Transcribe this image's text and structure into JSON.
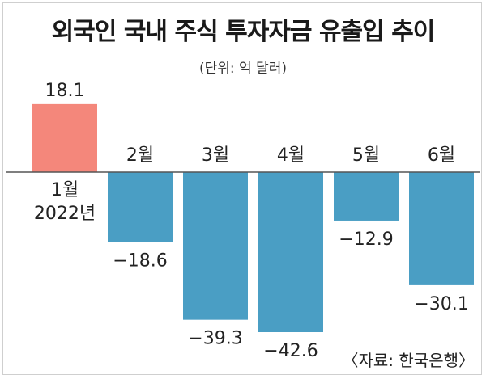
{
  "title": "외국인 국내 주식 투자자금 유출입 추이",
  "unit": "(단위: 억 달러)",
  "source": "〈자료: 한국은행〉",
  "colors": {
    "positive": "#f4877b",
    "negative": "#4a9ec4"
  },
  "chart_data": {
    "type": "bar",
    "title": "외국인 국내 주식 투자자금 유출입 추이",
    "ylabel": "(단위: 억 달러)",
    "categories": [
      "1월",
      "2월",
      "3월",
      "4월",
      "5월",
      "6월"
    ],
    "year_label": "2022년",
    "values": [
      18.1,
      -18.6,
      -39.3,
      -42.6,
      -12.9,
      -30.1
    ],
    "value_labels": [
      "18.1",
      "−18.6",
      "−39.3",
      "−42.6",
      "−12.9",
      "−30.1"
    ],
    "ylim": [
      -44,
      20
    ],
    "grid": false
  }
}
